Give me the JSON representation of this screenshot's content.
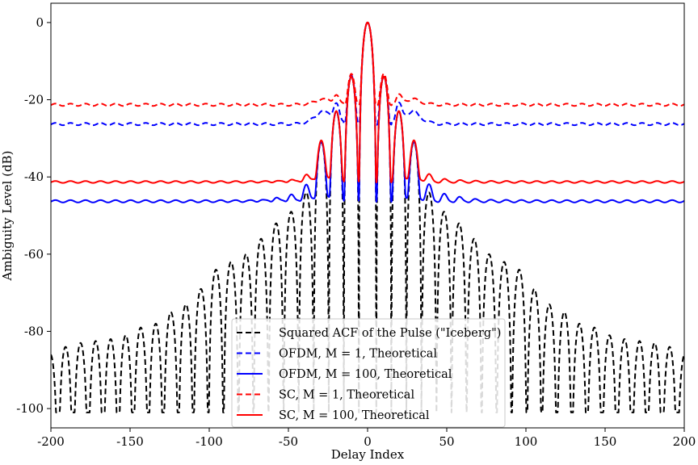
{
  "chart_data": {
    "type": "line",
    "title": "",
    "xlabel": "Delay Index",
    "ylabel": "Ambiguity Level (dB)",
    "xlim": [
      -200,
      200
    ],
    "ylim": [
      -105,
      5
    ],
    "xticks": [
      -200,
      -150,
      -100,
      -50,
      0,
      50,
      100,
      150,
      200
    ],
    "yticks": [
      0,
      -20,
      -40,
      -60,
      -80,
      -100
    ],
    "grid": false,
    "legend_position": "bottom-center",
    "mainlobe_halfwidth": 5.5,
    "sidelobe_spacing": 9.5,
    "iceberg_lobe_peaks": [
      -14,
      -23,
      -31,
      -44,
      -49,
      -52,
      -56,
      -60,
      -62,
      -64,
      -69,
      -73,
      -75,
      -78,
      -79,
      -81,
      -82,
      -82.5,
      -83,
      -84,
      -86,
      -88,
      -90,
      -92,
      -92,
      -93,
      -95
    ],
    "series": [
      {
        "name": "Squared ACF of the Pulse (\"Iceberg\")",
        "color": "#000000",
        "dash": "dashed",
        "floor_db": -101
      },
      {
        "name": "OFDM, M = 1, Theoretical",
        "color": "#0000ff",
        "dash": "dashed",
        "floor_db": -26.3,
        "ripple_db": 0.3,
        "bump_db": -21.5
      },
      {
        "name": "OFDM, M = 100, Theoretical",
        "color": "#0000ff",
        "dash": "solid",
        "floor_db": -46.3,
        "ripple_db": 0.3,
        "bump_db": -44.5
      },
      {
        "name": "SC, M = 1, Theoretical",
        "color": "#ff0000",
        "dash": "dashed",
        "floor_db": -21.3,
        "ripple_db": 0.3,
        "bump_db": -19.2
      },
      {
        "name": "SC, M = 100, Theoretical",
        "color": "#ff0000",
        "dash": "solid",
        "floor_db": -41.3,
        "ripple_db": 0.25,
        "bump_db": -39.5
      }
    ]
  }
}
